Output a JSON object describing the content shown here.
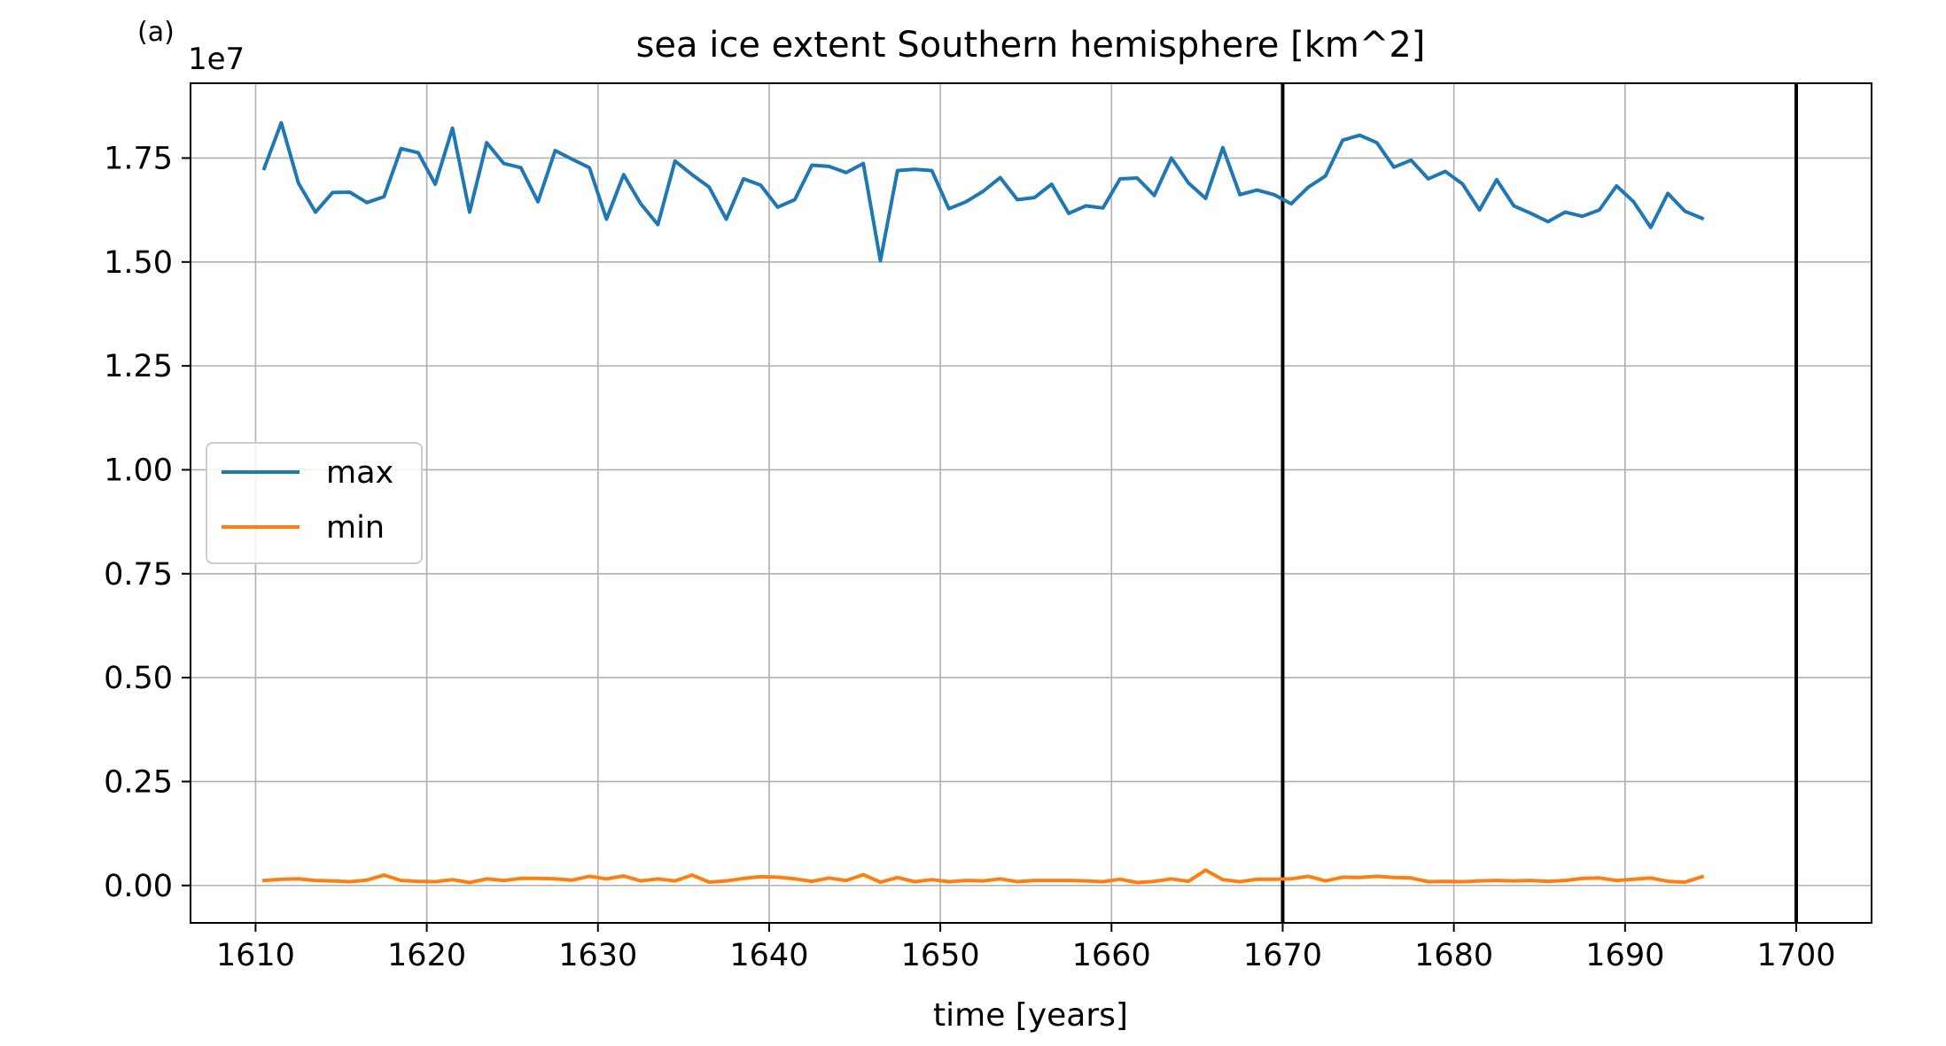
{
  "chart_data": {
    "type": "line",
    "panel_label": "(a)",
    "title": "sea ice extent Southern hemisphere [km^2]",
    "xlabel": "time [years]",
    "ylabel": "",
    "y_offset_label": "1e7",
    "y_scale_factor": 10000000,
    "xlim": [
      1606.2,
      1704.4
    ],
    "ylim": [
      -0.09,
      1.93
    ],
    "x_ticks": [
      1610,
      1620,
      1630,
      1640,
      1650,
      1660,
      1670,
      1680,
      1690,
      1700
    ],
    "x_tick_labels": [
      "1610",
      "1620",
      "1630",
      "1640",
      "1650",
      "1660",
      "1670",
      "1680",
      "1690",
      "1700"
    ],
    "y_ticks": [
      0,
      0.25,
      0.5,
      0.75,
      1.0,
      1.25,
      1.5,
      1.75
    ],
    "y_tick_labels": [
      "0.00",
      "0.25",
      "0.50",
      "0.75",
      "1.00",
      "1.25",
      "1.50",
      "1.75"
    ],
    "grid": true,
    "legend_position": "center-left",
    "vertical_lines": [
      1670,
      1700
    ],
    "x": [
      1610.5,
      1611.5,
      1612.5,
      1613.5,
      1614.5,
      1615.5,
      1616.5,
      1617.5,
      1618.5,
      1619.5,
      1620.5,
      1621.5,
      1622.5,
      1623.5,
      1624.5,
      1625.5,
      1626.5,
      1627.5,
      1628.5,
      1629.5,
      1630.5,
      1631.5,
      1632.5,
      1633.5,
      1634.5,
      1635.5,
      1636.5,
      1637.5,
      1638.5,
      1639.5,
      1640.5,
      1641.5,
      1642.5,
      1643.5,
      1644.5,
      1645.5,
      1646.5,
      1647.5,
      1648.5,
      1649.5,
      1650.5,
      1651.5,
      1652.5,
      1653.5,
      1654.5,
      1655.5,
      1656.5,
      1657.5,
      1658.5,
      1659.5,
      1660.5,
      1661.5,
      1662.5,
      1663.5,
      1664.5,
      1665.5,
      1666.5,
      1667.5,
      1668.5,
      1669.5,
      1670.5,
      1671.5,
      1672.5,
      1673.5,
      1674.5,
      1675.5,
      1676.5,
      1677.5,
      1678.5,
      1679.5,
      1680.5,
      1681.5,
      1682.5,
      1683.5,
      1684.5,
      1685.5,
      1686.5,
      1687.5,
      1688.5,
      1689.5,
      1690.5,
      1691.5,
      1692.5,
      1693.5,
      1694.5
    ],
    "series": [
      {
        "name": "max",
        "color": "#1f77b4",
        "values": [
          1.725,
          1.835,
          1.69,
          1.62,
          1.667,
          1.668,
          1.643,
          1.657,
          1.773,
          1.763,
          1.687,
          1.822,
          1.62,
          1.787,
          1.737,
          1.727,
          1.645,
          1.768,
          1.747,
          1.727,
          1.603,
          1.71,
          1.64,
          1.59,
          1.743,
          1.71,
          1.68,
          1.603,
          1.7,
          1.685,
          1.632,
          1.65,
          1.733,
          1.73,
          1.715,
          1.737,
          1.503,
          1.72,
          1.723,
          1.72,
          1.628,
          1.645,
          1.67,
          1.703,
          1.65,
          1.655,
          1.687,
          1.617,
          1.635,
          1.63,
          1.7,
          1.702,
          1.66,
          1.75,
          1.69,
          1.653,
          1.775,
          1.662,
          1.673,
          1.662,
          1.64,
          1.68,
          1.707,
          1.793,
          1.805,
          1.787,
          1.728,
          1.745,
          1.7,
          1.718,
          1.688,
          1.625,
          1.698,
          1.635,
          1.617,
          1.597,
          1.62,
          1.61,
          1.625,
          1.683,
          1.645,
          1.583,
          1.665,
          1.622,
          1.605
        ]
      },
      {
        "name": "min",
        "color": "#ff7f0e",
        "values": [
          0.012,
          0.015,
          0.016,
          0.012,
          0.011,
          0.009,
          0.013,
          0.025,
          0.012,
          0.01,
          0.009,
          0.014,
          0.007,
          0.016,
          0.012,
          0.017,
          0.017,
          0.016,
          0.013,
          0.022,
          0.016,
          0.023,
          0.011,
          0.016,
          0.011,
          0.025,
          0.008,
          0.011,
          0.017,
          0.021,
          0.02,
          0.016,
          0.01,
          0.018,
          0.012,
          0.026,
          0.008,
          0.019,
          0.009,
          0.014,
          0.009,
          0.012,
          0.011,
          0.016,
          0.009,
          0.012,
          0.012,
          0.012,
          0.011,
          0.009,
          0.015,
          0.007,
          0.01,
          0.016,
          0.01,
          0.037,
          0.014,
          0.009,
          0.015,
          0.015,
          0.016,
          0.022,
          0.011,
          0.02,
          0.019,
          0.022,
          0.019,
          0.018,
          0.009,
          0.01,
          0.009,
          0.011,
          0.012,
          0.011,
          0.012,
          0.01,
          0.012,
          0.017,
          0.018,
          0.012,
          0.015,
          0.018,
          0.01,
          0.008,
          0.021
        ]
      }
    ]
  }
}
